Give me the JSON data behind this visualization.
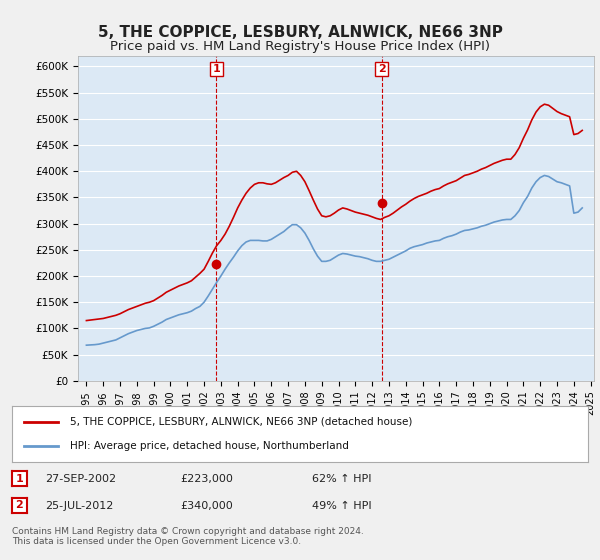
{
  "title": "5, THE COPPICE, LESBURY, ALNWICK, NE66 3NP",
  "subtitle": "Price paid vs. HM Land Registry's House Price Index (HPI)",
  "title_fontsize": 11,
  "subtitle_fontsize": 9.5,
  "ylabel": "",
  "xlabel": "",
  "ylim": [
    0,
    620000
  ],
  "yticks": [
    0,
    50000,
    100000,
    150000,
    200000,
    250000,
    300000,
    350000,
    400000,
    450000,
    500000,
    550000,
    600000
  ],
  "ytick_labels": [
    "£0",
    "£50K",
    "£100K",
    "£150K",
    "£200K",
    "£250K",
    "£300K",
    "£350K",
    "£400K",
    "£450K",
    "£500K",
    "£550K",
    "£600K"
  ],
  "background_color": "#dce9f5",
  "plot_bg_color": "#dce9f5",
  "grid_color": "#ffffff",
  "sale1_date_x": 2002.74,
  "sale1_price": 223000,
  "sale2_date_x": 2012.56,
  "sale2_price": 340000,
  "legend_line1": "5, THE COPPICE, LESBURY, ALNWICK, NE66 3NP (detached house)",
  "legend_line2": "HPI: Average price, detached house, Northumberland",
  "table_row1": [
    "1",
    "27-SEP-2002",
    "£223,000",
    "62% ↑ HPI"
  ],
  "table_row2": [
    "2",
    "25-JUL-2012",
    "£340,000",
    "49% ↑ HPI"
  ],
  "footer": "Contains HM Land Registry data © Crown copyright and database right 2024.\nThis data is licensed under the Open Government Licence v3.0.",
  "red_color": "#cc0000",
  "blue_color": "#6699cc",
  "hpi_data": {
    "years": [
      1995.0,
      1995.25,
      1995.5,
      1995.75,
      1996.0,
      1996.25,
      1996.5,
      1996.75,
      1997.0,
      1997.25,
      1997.5,
      1997.75,
      1998.0,
      1998.25,
      1998.5,
      1998.75,
      1999.0,
      1999.25,
      1999.5,
      1999.75,
      2000.0,
      2000.25,
      2000.5,
      2000.75,
      2001.0,
      2001.25,
      2001.5,
      2001.75,
      2002.0,
      2002.25,
      2002.5,
      2002.75,
      2003.0,
      2003.25,
      2003.5,
      2003.75,
      2004.0,
      2004.25,
      2004.5,
      2004.75,
      2005.0,
      2005.25,
      2005.5,
      2005.75,
      2006.0,
      2006.25,
      2006.5,
      2006.75,
      2007.0,
      2007.25,
      2007.5,
      2007.75,
      2008.0,
      2008.25,
      2008.5,
      2008.75,
      2009.0,
      2009.25,
      2009.5,
      2009.75,
      2010.0,
      2010.25,
      2010.5,
      2010.75,
      2011.0,
      2011.25,
      2011.5,
      2011.75,
      2012.0,
      2012.25,
      2012.5,
      2012.75,
      2013.0,
      2013.25,
      2013.5,
      2013.75,
      2014.0,
      2014.25,
      2014.5,
      2014.75,
      2015.0,
      2015.25,
      2015.5,
      2015.75,
      2016.0,
      2016.25,
      2016.5,
      2016.75,
      2017.0,
      2017.25,
      2017.5,
      2017.75,
      2018.0,
      2018.25,
      2018.5,
      2018.75,
      2019.0,
      2019.25,
      2019.5,
      2019.75,
      2020.0,
      2020.25,
      2020.5,
      2020.75,
      2021.0,
      2021.25,
      2021.5,
      2021.75,
      2022.0,
      2022.25,
      2022.5,
      2022.75,
      2023.0,
      2023.25,
      2023.5,
      2023.75,
      2024.0,
      2024.25,
      2024.5
    ],
    "hpi_values": [
      68000,
      68500,
      69000,
      70000,
      72000,
      74000,
      76000,
      78000,
      82000,
      86000,
      90000,
      93000,
      96000,
      98000,
      100000,
      101000,
      104000,
      108000,
      112000,
      117000,
      120000,
      123000,
      126000,
      128000,
      130000,
      133000,
      138000,
      142000,
      150000,
      162000,
      175000,
      188000,
      200000,
      213000,
      225000,
      236000,
      248000,
      258000,
      265000,
      268000,
      268000,
      268000,
      267000,
      267000,
      270000,
      275000,
      280000,
      285000,
      292000,
      298000,
      298000,
      292000,
      282000,
      268000,
      252000,
      238000,
      228000,
      228000,
      230000,
      235000,
      240000,
      243000,
      242000,
      240000,
      238000,
      237000,
      235000,
      233000,
      230000,
      228000,
      228000,
      230000,
      232000,
      236000,
      240000,
      244000,
      248000,
      253000,
      256000,
      258000,
      260000,
      263000,
      265000,
      267000,
      268000,
      272000,
      275000,
      277000,
      280000,
      284000,
      287000,
      288000,
      290000,
      292000,
      295000,
      297000,
      300000,
      303000,
      305000,
      307000,
      308000,
      308000,
      315000,
      325000,
      340000,
      352000,
      368000,
      380000,
      388000,
      392000,
      390000,
      385000,
      380000,
      378000,
      375000,
      372000,
      320000,
      322000,
      330000
    ],
    "property_values": [
      115000,
      116000,
      117000,
      118000,
      119000,
      121000,
      123000,
      125000,
      128000,
      132000,
      136000,
      139000,
      142000,
      145000,
      148000,
      150000,
      153000,
      158000,
      163000,
      169000,
      173000,
      177000,
      181000,
      184000,
      187000,
      191000,
      198000,
      205000,
      213000,
      228000,
      244000,
      258000,
      268000,
      280000,
      295000,
      312000,
      330000,
      345000,
      358000,
      368000,
      375000,
      378000,
      378000,
      376000,
      375000,
      378000,
      383000,
      388000,
      392000,
      398000,
      400000,
      392000,
      380000,
      363000,
      345000,
      328000,
      315000,
      313000,
      315000,
      320000,
      326000,
      330000,
      328000,
      325000,
      322000,
      320000,
      318000,
      316000,
      313000,
      310000,
      308000,
      312000,
      315000,
      320000,
      326000,
      332000,
      337000,
      343000,
      348000,
      352000,
      355000,
      358000,
      362000,
      365000,
      367000,
      372000,
      376000,
      379000,
      382000,
      387000,
      392000,
      394000,
      397000,
      400000,
      404000,
      407000,
      411000,
      415000,
      418000,
      421000,
      423000,
      423000,
      432000,
      445000,
      463000,
      479000,
      498000,
      513000,
      523000,
      528000,
      526000,
      520000,
      514000,
      510000,
      507000,
      504000,
      470000,
      472000,
      478000
    ]
  },
  "xtick_years": [
    1995,
    1996,
    1997,
    1998,
    1999,
    2000,
    2001,
    2002,
    2003,
    2004,
    2005,
    2006,
    2007,
    2008,
    2009,
    2010,
    2011,
    2012,
    2013,
    2014,
    2015,
    2016,
    2017,
    2018,
    2019,
    2020,
    2021,
    2022,
    2023,
    2024,
    2025
  ]
}
